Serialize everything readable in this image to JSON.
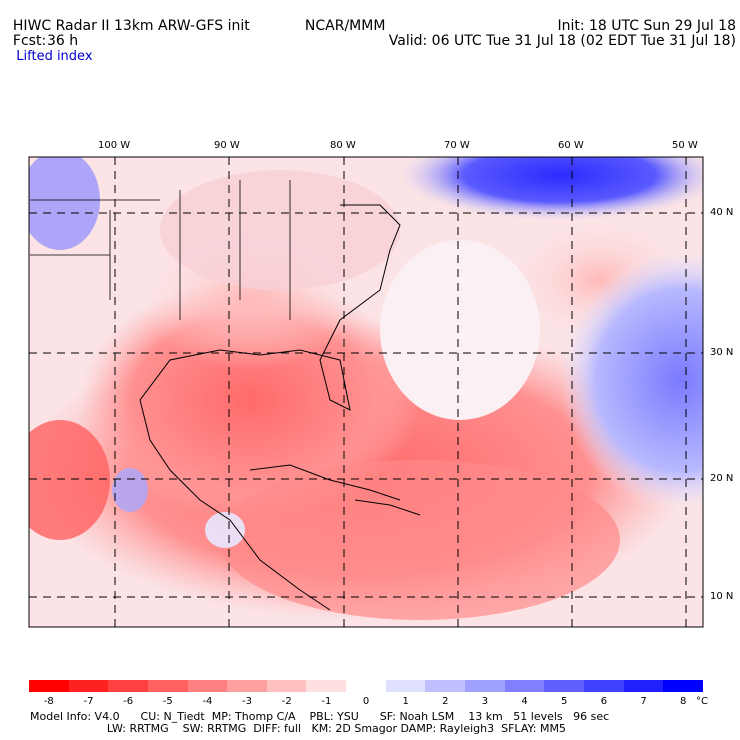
{
  "header": {
    "title": "HIWC Radar II 13km ARW-GFS init",
    "org": "NCAR/MMM",
    "init": "Init: 18 UTC Sun 29 Jul 18",
    "fcst_label": "Fcst:",
    "fcst_value": "36 h",
    "valid": "Valid: 06 UTC Tue 31 Jul 18 (02 EDT Tue 31 Jul 18)",
    "field": "Lifted index"
  },
  "map": {
    "lon_labels": [
      "100 W",
      "90 W",
      "80 W",
      "70 W",
      "60 W",
      "50 W"
    ],
    "lat_labels": [
      "40 N",
      "30 N",
      "20 N",
      "10 N"
    ]
  },
  "colorbar": {
    "ticks": [
      "-8",
      "-7",
      "-6",
      "-5",
      "-4",
      "-3",
      "-2",
      "-1",
      "0",
      "1",
      "2",
      "3",
      "4",
      "5",
      "6",
      "7",
      "8"
    ],
    "unit": "°C",
    "colors": [
      "#ff0000",
      "#ff2020",
      "#ff4040",
      "#ff6060",
      "#ff8080",
      "#ffa0a0",
      "#ffc0c0",
      "#ffe0e0",
      "#ffffff",
      "#e0e0ff",
      "#c0c0ff",
      "#a0a0ff",
      "#8080ff",
      "#6060ff",
      "#4040ff",
      "#2020ff",
      "#0000ff"
    ]
  },
  "footer": {
    "line1": "Model Info: V4.0      CU: N_Tiedt  MP: Thomp C/A    PBL: YSU      SF: Noah LSM    13 km   51 levels   96 sec",
    "line2": "                      LW: RRTMG    SW: RRTMG  DIFF: full   KM: 2D Smagor DAMP: Rayleigh3  SFLAY: MM5"
  }
}
